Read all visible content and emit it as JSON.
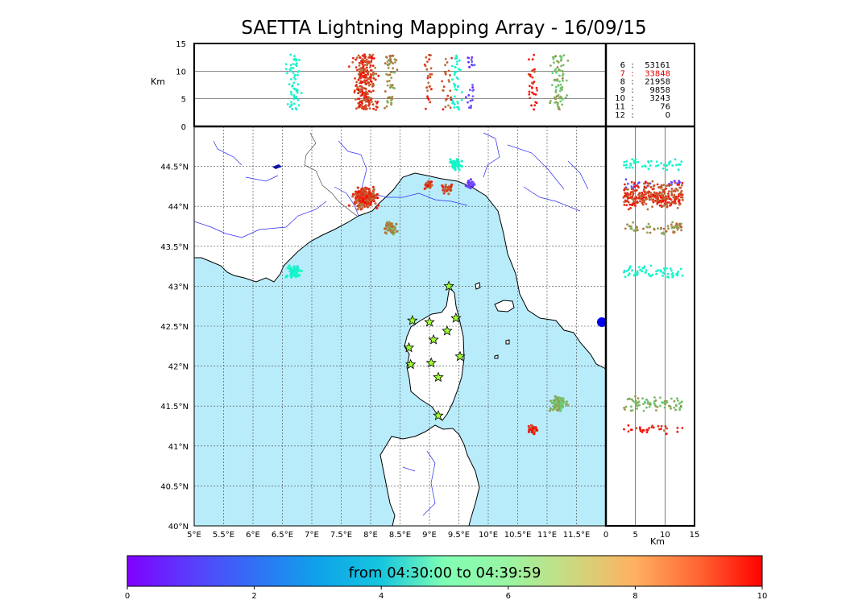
{
  "title": "SAETTA Lightning Mapping Array - 16/09/15",
  "altitude_panel": {
    "ylabel": "Km",
    "yticks": [
      0,
      5,
      10,
      15
    ],
    "gridlines_km": [
      5,
      10
    ]
  },
  "station_counts": [
    {
      "stations": "6",
      "sep": ":",
      "count": "53161",
      "highlight": false
    },
    {
      "stations": "7",
      "sep": ":",
      "count": "33848",
      "highlight": true
    },
    {
      "stations": "8",
      "sep": ":",
      "count": "21958",
      "highlight": false
    },
    {
      "stations": "9",
      "sep": ":",
      "count": "9858",
      "highlight": false
    },
    {
      "stations": "10",
      "sep": ":",
      "count": "3243",
      "highlight": false
    },
    {
      "stations": "11",
      "sep": ":",
      "count": "76",
      "highlight": false
    },
    {
      "stations": "12",
      "sep": ":",
      "count": "0",
      "highlight": false
    }
  ],
  "map": {
    "lon_range": [
      5,
      12
    ],
    "lat_range": [
      40,
      45
    ],
    "lon_ticks": [
      "5°E",
      "5.5°E",
      "6°E",
      "6.5°E",
      "7°E",
      "7.5°E",
      "8°E",
      "8.5°E",
      "9°E",
      "9.5°E",
      "10°E",
      "10.5°E",
      "11°E",
      "11.5°E"
    ],
    "lat_ticks": [
      "40°N",
      "40.5°N",
      "41°N",
      "41.5°N",
      "42°N",
      "42.5°N",
      "43°N",
      "43.5°N",
      "44°N",
      "44.5°N"
    ],
    "sea_color": "#b9ecfb",
    "land_color": "#ffffff",
    "grid": "dotted"
  },
  "side_panel": {
    "xlabel": "Km",
    "xticks": [
      0,
      5,
      10,
      15
    ],
    "gridlines_km": [
      5,
      10
    ]
  },
  "colorbar": {
    "label": "from 04:30:00 to 04:39:59",
    "ticks": [
      0,
      2,
      4,
      6,
      8,
      10
    ],
    "colormap": "rainbow"
  },
  "stations": [
    {
      "lon": 9.33,
      "lat": 43.0
    },
    {
      "lon": 8.71,
      "lat": 42.57
    },
    {
      "lon": 9.0,
      "lat": 42.55
    },
    {
      "lon": 9.45,
      "lat": 42.6
    },
    {
      "lon": 9.07,
      "lat": 42.33
    },
    {
      "lon": 9.3,
      "lat": 42.44
    },
    {
      "lon": 8.65,
      "lat": 42.23
    },
    {
      "lon": 9.52,
      "lat": 42.12
    },
    {
      "lon": 8.68,
      "lat": 42.02
    },
    {
      "lon": 9.03,
      "lat": 42.04
    },
    {
      "lon": 9.15,
      "lat": 41.86
    },
    {
      "lon": 9.15,
      "lat": 41.38
    }
  ],
  "lightning_clusters": [
    {
      "lon": 7.9,
      "lat": 44.1,
      "t": 9.2,
      "n": 260
    },
    {
      "lon": 8.33,
      "lat": 43.72,
      "t": 8.0,
      "n": 60
    },
    {
      "lon": 6.7,
      "lat": 43.18,
      "t": 4.0,
      "n": 60
    },
    {
      "lon": 9.45,
      "lat": 44.52,
      "t": 4.2,
      "n": 45
    },
    {
      "lon": 9.7,
      "lat": 44.28,
      "t": 0.8,
      "n": 25
    },
    {
      "lon": 9.3,
      "lat": 44.22,
      "t": 9.0,
      "n": 25
    },
    {
      "lon": 8.98,
      "lat": 44.27,
      "t": 9.2,
      "n": 25
    },
    {
      "lon": 11.2,
      "lat": 41.53,
      "t": 7.5,
      "n": 80
    },
    {
      "lon": 10.77,
      "lat": 41.21,
      "t": 9.5,
      "n": 30
    }
  ]
}
